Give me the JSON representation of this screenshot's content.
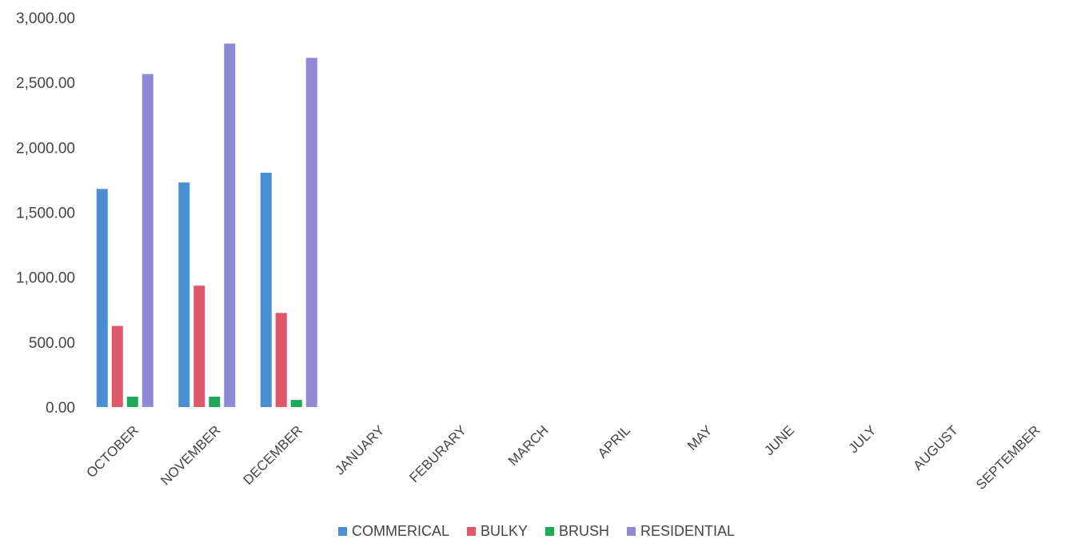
{
  "chart_data": {
    "type": "bar",
    "categories": [
      "OCTOBER",
      "NOVEMBER",
      "DECEMBER",
      "JANUARY",
      "FEBURARY",
      "MARCH",
      "APRIL",
      "MAY",
      "JUNE",
      "JULY",
      "AUGUST",
      "SEPTEMBER"
    ],
    "series": [
      {
        "name": "COMMERICAL",
        "color": "#4a8fd4",
        "values": [
          1680,
          1730,
          1805,
          null,
          null,
          null,
          null,
          null,
          null,
          null,
          null,
          null
        ]
      },
      {
        "name": "BULKY",
        "color": "#e0576a",
        "values": [
          625,
          935,
          725,
          null,
          null,
          null,
          null,
          null,
          null,
          null,
          null,
          null
        ]
      },
      {
        "name": "BRUSH",
        "color": "#1fa85a",
        "values": [
          80,
          80,
          55,
          null,
          null,
          null,
          null,
          null,
          null,
          null,
          null,
          null
        ]
      },
      {
        "name": "RESIDENTIAL",
        "color": "#8f89d8",
        "values": [
          2565,
          2800,
          2690,
          null,
          null,
          null,
          null,
          null,
          null,
          null,
          null,
          null
        ]
      }
    ],
    "yticks": [
      "0.00",
      "500.00",
      "1,000.00",
      "1,500.00",
      "2,000.00",
      "2,500.00",
      "3,000.00"
    ],
    "ylim": [
      0,
      3000
    ],
    "grid": false,
    "legend_position": "bottom"
  }
}
